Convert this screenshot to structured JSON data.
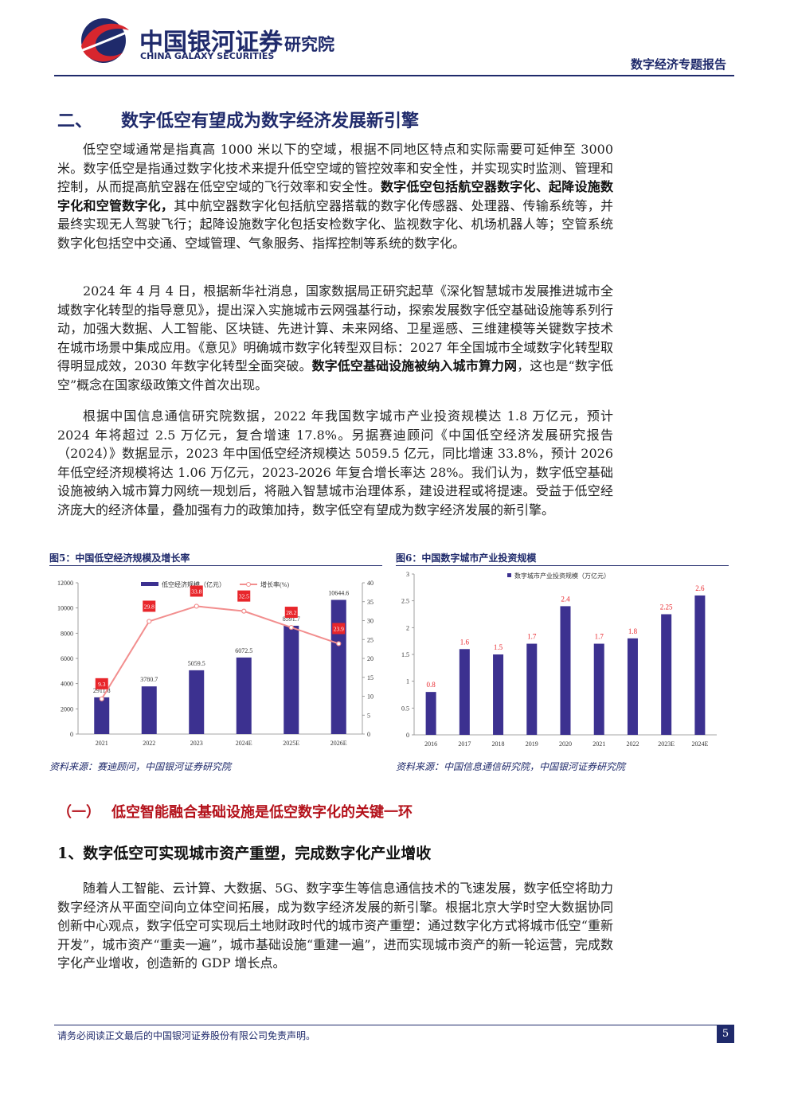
{
  "header": {
    "logo_cn": "中国银河证券",
    "logo_en": "CHINA GALAXY SECURITIES",
    "dept": "研究院",
    "report_type": "数字经济专题报告"
  },
  "section": {
    "number": "二、",
    "title": "数字低空有望成为数字经济发展新引擎"
  },
  "paragraphs": [
    [
      {
        "text": "低空空域通常是指真高 1000 米以下的空域，根据不同地区特点和实际需要可延伸至 3000 米。数字低空是指通过数字化技术来提升低空空域的管控效率和安全性，并实现实时监测、管理和控制，从而提高航空器在低空空域的飞行效率和安全性。",
        "bold": false
      },
      {
        "text": "数字低空包括航空器数字化、起降设施数字化和空管数字化，",
        "bold": true
      },
      {
        "text": "其中航空器数字化包括航空器搭载的数字化传感器、处理器、传输系统等，并最终实现无人驾驶飞行；起降设施数字化包括安检数字化、监视数字化、机场机器人等；空管系统数字化包括空中交通、空域管理、气象服务、指挥控制等系统的数字化。",
        "bold": false
      }
    ],
    [
      {
        "text": "2024 年 4 月 4 日，根据新华社消息，国家数据局正研究起草《深化智慧城市发展推进城市全域数字化转型的指导意见》，提出深入实施城市云网强基行动，探索发展数字低空基础设施等系列行动，加强大数据、人工智能、区块链、先进计算、未来网络、卫星遥感、三维建模等关键数字技术在城市场景中集成应用。《意见》明确城市数字化转型双目标：2027 年全国城市全域数字化转型取得明显成效，2030 年数字化转型全面突破。",
        "bold": false
      },
      {
        "text": "数字低空基础设施被纳入城市算力网",
        "bold": true
      },
      {
        "text": "，这也是“数字低空”概念在国家级政策文件首次出现。",
        "bold": false
      }
    ],
    [
      {
        "text": "根据中国信息通信研究院数据，2022 年我国数字城市产业投资规模达 1.8 万亿元，预计 2024 年将超过 2.5 万亿元，复合增速 17.8%。另据赛迪顾问《中国低空经济发展研究报告（2024）》数据显示，2023 年中国低空经济规模达 5059.5 亿元，同比增速 33.8%，预计 2026 年低空经济规模将达 1.06 万亿元，2023-2026 年复合增长率达 28%。我们认为，数字低空基础设施被纳入城市算力网统一规划后，将融入智慧城市治理体系，建设进程或将提速。受益于低空经济庞大的经济体量，叠加强有力的政策加持，数字低空有望成为数字经济发展的新引擎。",
        "bold": false
      }
    ]
  ],
  "chart_data": [
    {
      "type": "combo",
      "title": "图5：中国低空经济规模及增长率",
      "source": "资料来源：赛迪顾问，中国银河证券研究院",
      "categories": [
        "2021",
        "2022",
        "2023",
        "2024E",
        "2025E",
        "2026E"
      ],
      "series": [
        {
          "name": "低空经济规模（亿元）",
          "kind": "bar",
          "color": "#3c3190",
          "label_color": "#333333",
          "values": [
            2911.8,
            3780.7,
            5059.5,
            6072.5,
            8591.7,
            10644.6
          ]
        },
        {
          "name": "增长率(%)",
          "kind": "line",
          "axis": "y2",
          "color": "#f28e8e",
          "label_color": "#e8262b",
          "values": [
            9.3,
            29.8,
            33.8,
            32.5,
            28.2,
            23.9
          ]
        }
      ],
      "ylim": [
        0,
        12000
      ],
      "yticks": [
        0,
        2000,
        4000,
        6000,
        8000,
        10000,
        12000
      ],
      "y2lim": [
        0,
        40
      ],
      "y2ticks": [
        0,
        5,
        10,
        15,
        20,
        25,
        30,
        35,
        40
      ],
      "legend": "top",
      "grid": false
    },
    {
      "type": "bar",
      "title": "图6：中国数字城市产业投资规模",
      "source": "资料来源：中国信息通信研究院，中国银河证券研究院",
      "categories": [
        "2016",
        "2017",
        "2018",
        "2019",
        "2020",
        "2021",
        "2022",
        "2023E",
        "2024E"
      ],
      "series": [
        {
          "name": "数字城市产业投资规模（万亿元）",
          "kind": "bar",
          "color": "#3c3190",
          "label_color": "#e8262b",
          "values": [
            0.8,
            1.6,
            1.5,
            1.7,
            2.4,
            1.7,
            1.8,
            2.25,
            2.6
          ]
        }
      ],
      "ylim": [
        0,
        3
      ],
      "yticks": [
        0,
        0.5,
        1,
        1.5,
        2,
        2.5,
        3
      ],
      "legend": "top",
      "grid": false
    }
  ],
  "subsection": {
    "number": "（一）",
    "title": "低空智能融合基础设施是低空数字化的关键一环"
  },
  "subsubsection": {
    "title": "1、数字低空可实现城市资产重塑，完成数字化产业增收"
  },
  "paragraphs2": [
    [
      {
        "text": "随着人工智能、云计算、大数据、5G、数字孪生等信息通信技术的飞速发展，数字低空将助力数字经济从平面空间向立体空间拓展，成为数字经济发展的新引擎。根据北京大学时空大数据协同创新中心观点，数字低空可实现后土地财政时代的城市资产重塑：通过数字化方式将城市低空“重新开发”，城市资产“重卖一遍”，城市基础设施“重建一遍”，进而实现城市资产的新一轮运营，完成数字化产业增收，创造新的 GDP 增长点。",
        "bold": false
      }
    ]
  ],
  "footer": {
    "disclaimer": "请务必阅读正文最后的中国银河证券股份有限公司免责声明。",
    "page": "5"
  }
}
